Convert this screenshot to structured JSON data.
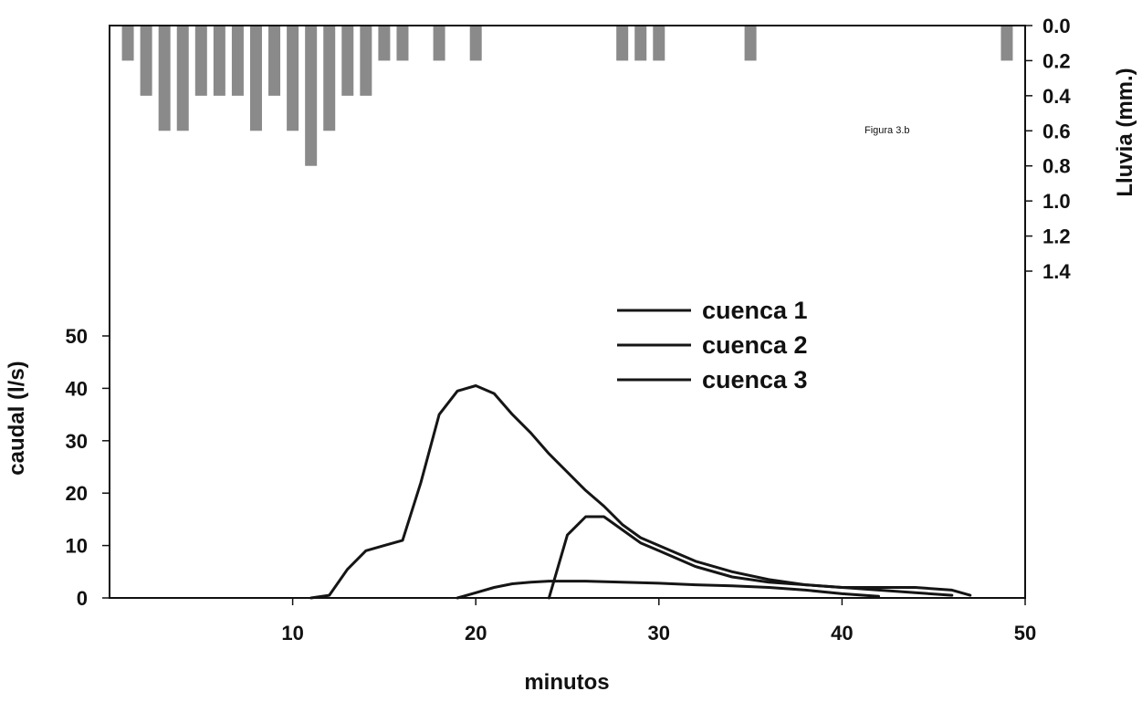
{
  "chart_data": {
    "type": "line",
    "annotation": "Figura 3.b",
    "xlabel": "minutos",
    "ylabel": "caudal (l/s)",
    "y2label": "Lluvia (mm.)",
    "xlim": [
      0,
      50
    ],
    "ylim": [
      0,
      50
    ],
    "y2lim": [
      0,
      1.4
    ],
    "x_ticks": [
      "10",
      "20",
      "30",
      "40",
      "50"
    ],
    "y_ticks": [
      "0",
      "10",
      "20",
      "30",
      "40",
      "50"
    ],
    "y2_ticks": [
      "0.0",
      "0.2",
      "0.4",
      "0.6",
      "0.8",
      "1.0",
      "1.2",
      "1.4"
    ],
    "grid": false,
    "legend_position": "center-right",
    "rain": {
      "type": "bar",
      "axis": "secondary-inverted",
      "color": "#8a8a8a",
      "x": [
        1,
        2,
        3,
        4,
        5,
        6,
        7,
        8,
        9,
        10,
        11,
        12,
        13,
        14,
        15,
        16,
        18,
        20,
        28,
        29,
        30,
        35,
        49
      ],
      "values": [
        0.2,
        0.4,
        0.6,
        0.6,
        0.4,
        0.4,
        0.4,
        0.6,
        0.4,
        0.6,
        0.8,
        0.6,
        0.4,
        0.4,
        0.2,
        0.2,
        0.2,
        0.2,
        0.2,
        0.2,
        0.2,
        0.2,
        0.2
      ]
    },
    "series": [
      {
        "name": "cuenca 1",
        "x": [
          11,
          12,
          13,
          14,
          15,
          16,
          17,
          18,
          19,
          20,
          21,
          22,
          23,
          24,
          25,
          26,
          27,
          28,
          29,
          30,
          32,
          34,
          36,
          38,
          40,
          42,
          44,
          46
        ],
        "y": [
          0,
          0.5,
          5.5,
          9,
          10,
          11,
          22,
          35,
          39.5,
          40.5,
          39,
          35,
          31.5,
          27.5,
          24,
          20.5,
          17.5,
          14,
          11.5,
          10,
          7,
          5,
          3.5,
          2.5,
          2,
          1.5,
          1,
          0.5
        ]
      },
      {
        "name": "cuenca 2",
        "x": [
          24,
          25,
          26,
          27,
          28,
          29,
          30,
          32,
          34,
          36,
          38,
          40,
          42,
          44,
          46,
          47
        ],
        "y": [
          0,
          12,
          15.5,
          15.5,
          13,
          10.5,
          9,
          6,
          4,
          3,
          2.5,
          2,
          2,
          2,
          1.5,
          0.5
        ]
      },
      {
        "name": "cuenca 3",
        "x": [
          19,
          20,
          21,
          22,
          23,
          24,
          26,
          28,
          30,
          32,
          34,
          36,
          38,
          40,
          42
        ],
        "y": [
          0,
          1,
          2,
          2.7,
          3,
          3.2,
          3.2,
          3,
          2.8,
          2.5,
          2.3,
          2,
          1.5,
          0.8,
          0.3
        ]
      }
    ]
  }
}
